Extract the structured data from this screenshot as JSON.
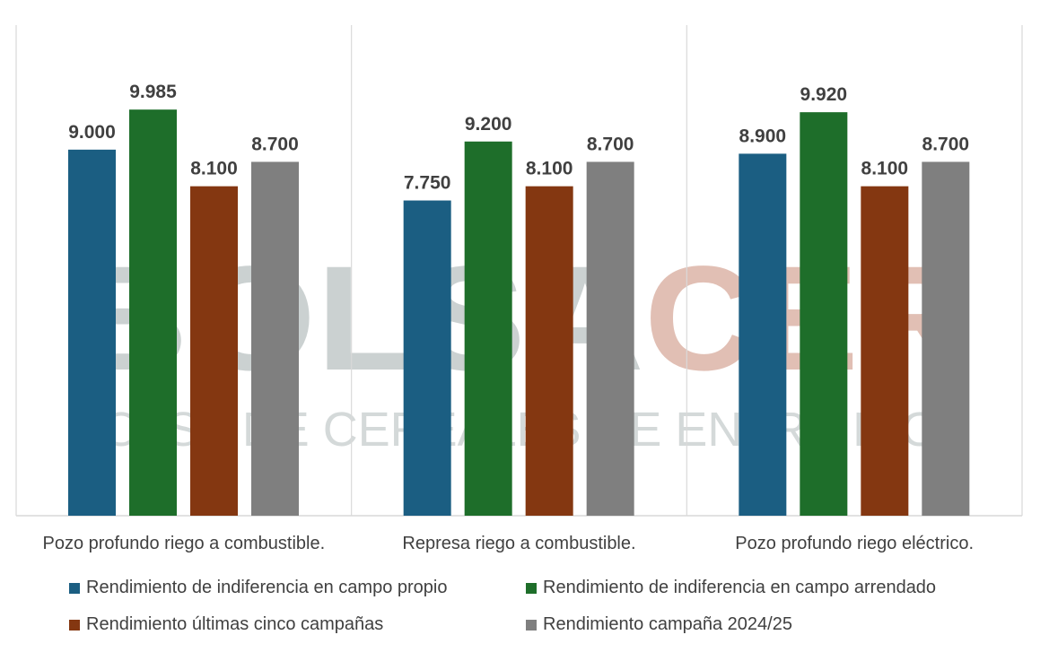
{
  "colors": {
    "propio": "#1b5e82",
    "arrendado": "#1e6e2a",
    "ultimas": "#843711",
    "campana": "#7f7f7f",
    "grid": "#d9d9d9",
    "value_text": "#404040",
    "watermark_gray": "#a9b3b3",
    "watermark_brown": "#c98a76"
  },
  "watermark": {
    "brand_part1": "BOLSA",
    "brand_part2": "CER",
    "subtitle": "BOLSA DE CEREALES DE ENTRE RÍOS"
  },
  "chart_data": {
    "type": "bar",
    "title": "",
    "xlabel": "",
    "ylabel": "",
    "ylim": [
      0,
      12000
    ],
    "grid": false,
    "legend_position": "bottom",
    "categories": [
      "Pozo profundo riego a combustible.",
      "Represa riego a combustible.",
      "Pozo profundo riego eléctrico."
    ],
    "series": [
      {
        "name": "Rendimiento de indiferencia en campo propio",
        "color_key": "propio",
        "values": [
          9000,
          7750,
          8900
        ],
        "labels": [
          "9.000",
          "7.750",
          "8.900"
        ]
      },
      {
        "name": "Rendimiento de indiferencia en campo arrendado",
        "color_key": "arrendado",
        "values": [
          9985,
          9200,
          9920
        ],
        "labels": [
          "9.985",
          "9.200",
          "9.920"
        ]
      },
      {
        "name": "Rendimiento últimas cinco campañas",
        "color_key": "ultimas",
        "values": [
          8100,
          8100,
          8100
        ],
        "labels": [
          "8.100",
          "8.100",
          "8.100"
        ]
      },
      {
        "name": "Rendimiento campaña 2024/25",
        "color_key": "campana",
        "values": [
          8700,
          8700,
          8700
        ],
        "labels": [
          "8.700",
          "8.700",
          "8.700"
        ]
      }
    ]
  }
}
